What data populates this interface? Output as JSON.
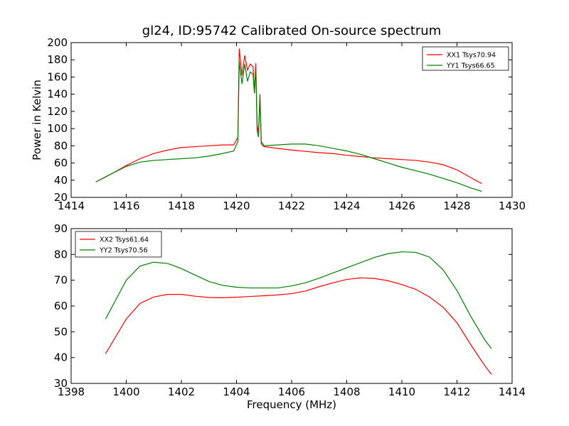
{
  "chart_data": [
    {
      "type": "line",
      "title": "gl24, ID:95742 Calibrated On-source spectrum",
      "xlabel": "",
      "ylabel": "Power in Kelvin",
      "xlim": [
        1414,
        1430
      ],
      "ylim": [
        20,
        200
      ],
      "xticks": [
        "1414",
        "1416",
        "1418",
        "1420",
        "1422",
        "1424",
        "1426",
        "1428",
        "1430"
      ],
      "yticks": [
        "20",
        "40",
        "60",
        "80",
        "100",
        "120",
        "140",
        "160",
        "180",
        "200"
      ],
      "legend_position": "top-right",
      "series": [
        {
          "name": "XX1 Tsys70.94",
          "color": "#ff0000",
          "x": [
            1414.9,
            1415.5,
            1416,
            1416.5,
            1417,
            1417.5,
            1418,
            1418.5,
            1419,
            1419.5,
            1419.9,
            1420.05,
            1420.1,
            1420.2,
            1420.3,
            1420.4,
            1420.5,
            1420.6,
            1420.65,
            1420.7,
            1420.75,
            1420.8,
            1420.85,
            1420.9,
            1421,
            1421.5,
            1422,
            1422.5,
            1423,
            1423.5,
            1424,
            1424.5,
            1425,
            1425.5,
            1426,
            1426.5,
            1427,
            1427.5,
            1428,
            1428.5,
            1428.9
          ],
          "y": [
            38,
            48,
            57,
            65,
            71,
            75,
            78,
            79,
            80,
            81,
            81,
            90,
            193,
            162,
            185,
            168,
            175,
            172,
            142,
            176,
            104,
            95,
            140,
            82,
            79,
            77,
            75,
            73.5,
            72,
            71,
            69,
            67.5,
            66,
            65,
            64,
            63,
            61,
            58,
            52,
            43,
            36
          ]
        },
        {
          "name": "YY1 Tsys66.65",
          "color": "#008000",
          "x": [
            1414.9,
            1415.5,
            1416,
            1416.5,
            1417,
            1417.5,
            1418,
            1418.5,
            1419,
            1419.5,
            1419.9,
            1420.05,
            1420.1,
            1420.2,
            1420.3,
            1420.4,
            1420.5,
            1420.6,
            1420.65,
            1420.7,
            1420.75,
            1420.8,
            1420.85,
            1420.9,
            1421,
            1421.5,
            1422,
            1422.5,
            1423,
            1423.5,
            1424,
            1424.5,
            1425,
            1425.5,
            1426,
            1426.5,
            1427,
            1427.5,
            1428,
            1428.5,
            1428.9
          ],
          "y": [
            38,
            48,
            56,
            61,
            63,
            64,
            65,
            66,
            68,
            71,
            74,
            85,
            178,
            152,
            175,
            155,
            166,
            163,
            141,
            170,
            97,
            90,
            138,
            85,
            80,
            81,
            82,
            82,
            80,
            77,
            74,
            70,
            65,
            60,
            55,
            51,
            47,
            42,
            37,
            31,
            27
          ]
        }
      ]
    },
    {
      "type": "line",
      "title": "",
      "xlabel": "Frequency (MHz)",
      "ylabel": "",
      "xlim": [
        1398,
        1414
      ],
      "ylim": [
        30,
        90
      ],
      "xticks": [
        "1398",
        "1400",
        "1402",
        "1404",
        "1406",
        "1408",
        "1410",
        "1412",
        "1414"
      ],
      "yticks": [
        "30",
        "40",
        "50",
        "60",
        "70",
        "80",
        "90"
      ],
      "legend_position": "top-left",
      "series": [
        {
          "name": "XX2 Tsys61.64",
          "color": "#ff0000",
          "x": [
            1399.25,
            1399.5,
            1400,
            1400.5,
            1401,
            1401.5,
            1402,
            1402.5,
            1403,
            1403.5,
            1404,
            1404.5,
            1405,
            1405.5,
            1406,
            1406.5,
            1407,
            1407.5,
            1408,
            1408.5,
            1409,
            1409.5,
            1410,
            1410.5,
            1411,
            1411.5,
            1412,
            1412.5,
            1413,
            1413.25
          ],
          "y": [
            41.5,
            46,
            55,
            61,
            63.5,
            64.5,
            64.5,
            63.8,
            63.3,
            63.2,
            63.4,
            63.7,
            64,
            64.3,
            64.8,
            65.8,
            67.5,
            69,
            70.3,
            70.9,
            70.7,
            69.8,
            68.3,
            66.5,
            63.5,
            59.5,
            53.5,
            45,
            37,
            33.5
          ]
        },
        {
          "name": "YY2 Tsys70.56",
          "color": "#008000",
          "x": [
            1399.25,
            1399.5,
            1400,
            1400.5,
            1401,
            1401.5,
            1402,
            1402.5,
            1403,
            1403.5,
            1404,
            1404.5,
            1405,
            1405.5,
            1406,
            1406.5,
            1407,
            1407.5,
            1408,
            1408.5,
            1409,
            1409.5,
            1410,
            1410.5,
            1411,
            1411.5,
            1412,
            1412.5,
            1413,
            1413.25
          ],
          "y": [
            55,
            60,
            70,
            75.5,
            77,
            76.5,
            74.5,
            72,
            69.5,
            68,
            67.3,
            67,
            67,
            67,
            67.8,
            69,
            70.8,
            72.8,
            74.8,
            76.8,
            78.8,
            80.3,
            81,
            80.8,
            79,
            74,
            66,
            56,
            47,
            43.5
          ]
        }
      ]
    }
  ]
}
